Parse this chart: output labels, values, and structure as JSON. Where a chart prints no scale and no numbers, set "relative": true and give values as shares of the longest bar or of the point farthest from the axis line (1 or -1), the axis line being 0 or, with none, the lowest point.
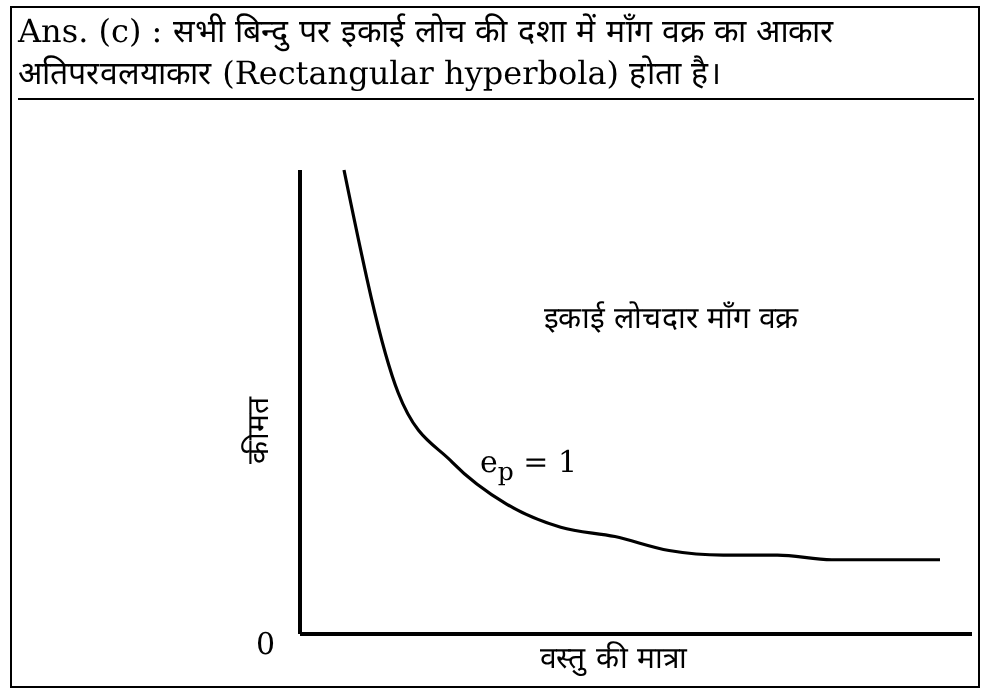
{
  "chart_data": {
    "type": "line",
    "relative": true,
    "title": "Ans. (c) : सभी बिन्दु पर इकाई लोच की दशा में माँग वक्र का आकार अतिपरवलयाकार (Rectangular hyperbola) होता है।",
    "xlabel": "वस्तु की मात्रा",
    "ylabel": "कीमत",
    "annotations": [
      "इकाई लोचदार माँग वक्र",
      "e$_{p}$ = 1",
      "0"
    ],
    "categories": [
      null,
      null,
      null,
      null,
      null,
      null,
      null,
      null,
      null,
      null,
      null,
      null
    ],
    "series": [
      {
        "color": "#000000",
        "values": [
          1,
          0.52,
          0.37,
          0.28,
          0.23,
          0.21,
          0.18,
          0.17,
          0.17,
          0.16,
          0.16,
          0.16
        ]
      }
    ],
    "grid": false,
    "legend": false,
    "marker": "none",
    "line_style": "solid"
  }
}
